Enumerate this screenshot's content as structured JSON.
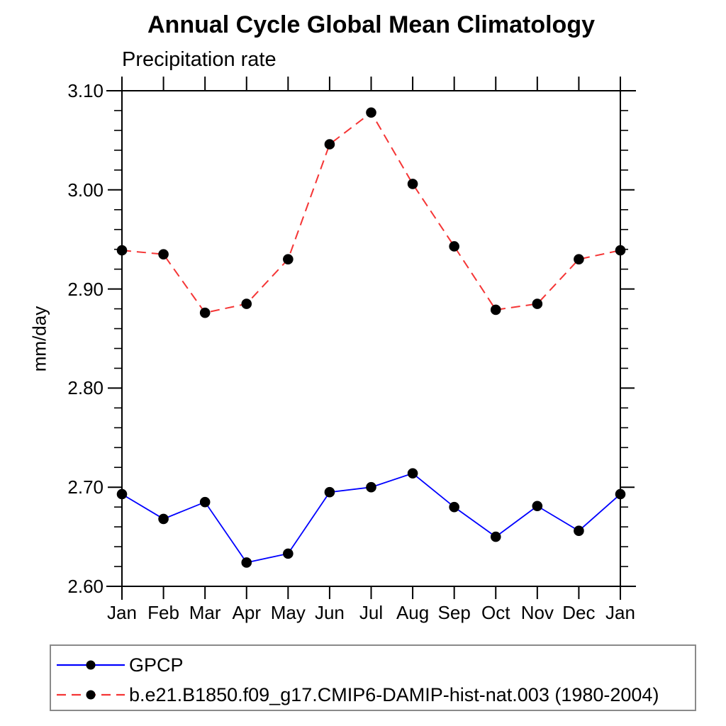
{
  "header": {
    "title": "Annual Cycle Global Mean Climatology",
    "subtitle": "Precipitation rate"
  },
  "chart_data": {
    "type": "line",
    "title": "Annual Cycle Global Mean Climatology",
    "subtitle": "Precipitation rate",
    "xlabel": "",
    "ylabel": "mm/day",
    "categories": [
      "Jan",
      "Feb",
      "Mar",
      "Apr",
      "May",
      "Jun",
      "Jul",
      "Aug",
      "Sep",
      "Oct",
      "Nov",
      "Dec",
      "Jan"
    ],
    "ylim": [
      2.6,
      3.1
    ],
    "ytick_step": 0.1,
    "ytick_minor_step": 0.02,
    "ytick_labels": [
      "2.60",
      "2.70",
      "2.80",
      "2.90",
      "3.00",
      "3.10"
    ],
    "grid": false,
    "legend_position": "bottom",
    "marker": "filled-circle",
    "marker_color": "#000000",
    "axis_color": "#000000",
    "series": [
      {
        "name": "GPCP",
        "color": "#0000ff",
        "line_style": "solid",
        "values": [
          2.693,
          2.668,
          2.685,
          2.624,
          2.633,
          2.695,
          2.7,
          2.714,
          2.68,
          2.65,
          2.681,
          2.656,
          2.693
        ]
      },
      {
        "name": "b.e21.B1850.f09_g17.CMIP6-DAMIP-hist-nat.003 (1980-2004)",
        "color": "#f53535",
        "line_style": "dashed",
        "values": [
          2.939,
          2.935,
          2.876,
          2.885,
          2.93,
          3.046,
          3.078,
          3.006,
          2.943,
          2.879,
          2.885,
          2.93,
          2.939
        ]
      }
    ]
  }
}
